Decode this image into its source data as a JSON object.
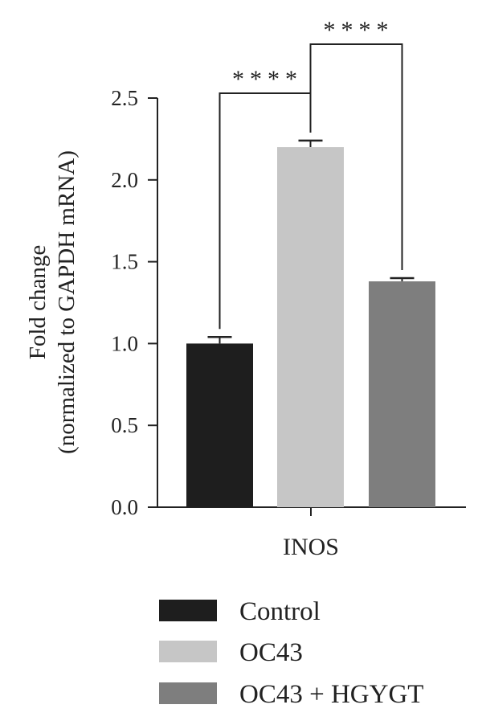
{
  "chart_data": {
    "type": "bar",
    "categories": [
      "INOS"
    ],
    "series": [
      {
        "name": "Control",
        "values": [
          1.0
        ],
        "error": [
          0.04
        ],
        "color": "#1e1e1e"
      },
      {
        "name": "OC43",
        "values": [
          2.2
        ],
        "error": [
          0.04
        ],
        "color": "#c6c6c6"
      },
      {
        "name": "OC43 + HGYGT",
        "values": [
          1.38
        ],
        "error": [
          0.02
        ],
        "color": "#7e7e7e"
      }
    ],
    "ylabel_lines": [
      "Fold change",
      "(normalized to GAPDH mRNA)"
    ],
    "yticks": [
      {
        "value": 0.0,
        "label": "0.0"
      },
      {
        "value": 0.5,
        "label": "0.5"
      },
      {
        "value": 1.0,
        "label": "1.0"
      },
      {
        "value": 1.5,
        "label": "1.5"
      },
      {
        "value": 2.0,
        "label": "2.0"
      },
      {
        "value": 2.5,
        "label": "2.5"
      }
    ],
    "ylim": [
      0,
      2.5
    ],
    "significance": [
      {
        "from": "Control",
        "to": "OC43",
        "label": "****"
      },
      {
        "from": "OC43",
        "to": "OC43 + HGYGT",
        "label": "****"
      }
    ],
    "legend_position": "bottom"
  }
}
